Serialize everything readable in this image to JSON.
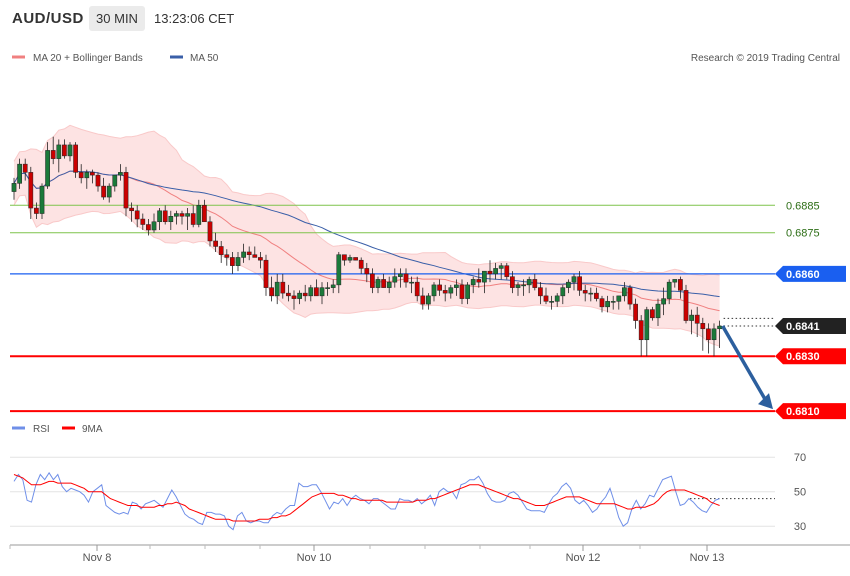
{
  "header": {
    "symbol": "AUD/USD",
    "timeframe": "30 MIN",
    "time": "13:23:06 CET"
  },
  "legend": {
    "ma20_label": "MA 20 + Bollinger Bands",
    "ma50_label": "MA 50",
    "credit": "Research © 2019 Trading Central"
  },
  "rsi_legend": {
    "rsi_label": "RSI",
    "ma_label": "9MA"
  },
  "colors": {
    "candle_up": "#1b7a3a",
    "candle_down": "#cc0000",
    "bollinger_fill": "#fde3e3",
    "ma20": "#f08080",
    "ma50": "#3a5fa8",
    "support": "#ff0000",
    "pivot": "#1a5ff0",
    "target_arrow": "#2c5f9e",
    "green_level": "#7fc34c",
    "rsi": "#6f8fe8",
    "rsi_ma": "#ff0000"
  },
  "chart_data": [
    {
      "type": "candlestick",
      "title": "",
      "xlabel": "",
      "ylabel": "",
      "x_tick_labels": [
        "Nov 8",
        "Nov 10",
        "Nov 12",
        "Nov 13"
      ],
      "ylim": [
        0.68075,
        0.69445
      ],
      "series": [
        {
          "name": "MA 20 + Bollinger Bands",
          "role": "bollinger"
        },
        {
          "name": "MA 50",
          "role": "ma50"
        }
      ],
      "levels": [
        {
          "value": 0.6885,
          "label": "0.6885",
          "kind": "resistance"
        },
        {
          "value": 0.6875,
          "label": "0.6875",
          "kind": "resistance"
        },
        {
          "value": 0.686,
          "label": "0.6860",
          "kind": "pivot"
        },
        {
          "value": 0.6841,
          "label": "0.6841",
          "kind": "last"
        },
        {
          "value": 0.683,
          "label": "0.6830",
          "kind": "support"
        },
        {
          "value": 0.681,
          "label": "0.6810",
          "kind": "support"
        }
      ],
      "candles_ohlc": [
        [
          0.689,
          0.6895,
          0.6887,
          0.6893
        ],
        [
          0.6893,
          0.6902,
          0.6891,
          0.69
        ],
        [
          0.69,
          0.6902,
          0.6894,
          0.6897
        ],
        [
          0.6897,
          0.6899,
          0.688,
          0.6884
        ],
        [
          0.6884,
          0.6886,
          0.688,
          0.6882
        ],
        [
          0.6882,
          0.6893,
          0.688,
          0.6892
        ],
        [
          0.6892,
          0.6908,
          0.6891,
          0.6905
        ],
        [
          0.6905,
          0.691,
          0.69,
          0.6902
        ],
        [
          0.6902,
          0.6909,
          0.6897,
          0.6907
        ],
        [
          0.6907,
          0.6909,
          0.6902,
          0.6903
        ],
        [
          0.6903,
          0.6908,
          0.6901,
          0.6907
        ],
        [
          0.6907,
          0.6908,
          0.6895,
          0.6897
        ],
        [
          0.6897,
          0.69,
          0.6893,
          0.6895
        ],
        [
          0.6895,
          0.6898,
          0.6891,
          0.6897
        ],
        [
          0.6897,
          0.6898,
          0.6893,
          0.6896
        ],
        [
          0.6896,
          0.6897,
          0.689,
          0.6892
        ],
        [
          0.6892,
          0.6895,
          0.6887,
          0.6888
        ],
        [
          0.6888,
          0.6893,
          0.6886,
          0.6892
        ],
        [
          0.6892,
          0.6896,
          0.689,
          0.6896
        ],
        [
          0.6896,
          0.69,
          0.6894,
          0.6897
        ],
        [
          0.6897,
          0.6899,
          0.6881,
          0.6884
        ],
        [
          0.6884,
          0.6886,
          0.6879,
          0.6883
        ],
        [
          0.6883,
          0.6885,
          0.6877,
          0.688
        ],
        [
          0.688,
          0.6882,
          0.6876,
          0.6878
        ],
        [
          0.6878,
          0.688,
          0.6874,
          0.6876
        ],
        [
          0.6876,
          0.6882,
          0.6875,
          0.6879
        ],
        [
          0.6879,
          0.6884,
          0.6876,
          0.6883
        ],
        [
          0.6883,
          0.6885,
          0.6878,
          0.6879
        ],
        [
          0.6879,
          0.6883,
          0.6876,
          0.6881
        ],
        [
          0.6881,
          0.6883,
          0.6878,
          0.6882
        ],
        [
          0.6882,
          0.6883,
          0.6878,
          0.6881
        ],
        [
          0.6881,
          0.6884,
          0.6876,
          0.6882
        ],
        [
          0.6882,
          0.6885,
          0.6877,
          0.6878
        ],
        [
          0.6878,
          0.6887,
          0.6877,
          0.6885
        ],
        [
          0.6885,
          0.6887,
          0.6879,
          0.6879
        ],
        [
          0.6879,
          0.6881,
          0.687,
          0.6872
        ],
        [
          0.6872,
          0.6875,
          0.6868,
          0.687
        ],
        [
          0.687,
          0.6872,
          0.6864,
          0.6867
        ],
        [
          0.6867,
          0.6869,
          0.6863,
          0.6866
        ],
        [
          0.6866,
          0.6868,
          0.686,
          0.6863
        ],
        [
          0.6863,
          0.6868,
          0.6861,
          0.6866
        ],
        [
          0.6866,
          0.6871,
          0.6864,
          0.6868
        ],
        [
          0.6868,
          0.687,
          0.6865,
          0.6867
        ],
        [
          0.6867,
          0.687,
          0.6866,
          0.6866
        ],
        [
          0.6866,
          0.6868,
          0.6862,
          0.6865
        ],
        [
          0.6865,
          0.6867,
          0.6852,
          0.6855
        ],
        [
          0.6855,
          0.6859,
          0.685,
          0.6852
        ],
        [
          0.6852,
          0.686,
          0.6849,
          0.6857
        ],
        [
          0.6857,
          0.686,
          0.6851,
          0.6853
        ],
        [
          0.6853,
          0.6856,
          0.685,
          0.6852
        ],
        [
          0.6852,
          0.6854,
          0.6847,
          0.6851
        ],
        [
          0.6851,
          0.6854,
          0.6849,
          0.6853
        ],
        [
          0.6853,
          0.6856,
          0.685,
          0.6852
        ],
        [
          0.6852,
          0.6856,
          0.685,
          0.6855
        ],
        [
          0.6855,
          0.6858,
          0.6852,
          0.6852
        ],
        [
          0.6852,
          0.6857,
          0.6849,
          0.6855
        ],
        [
          0.6855,
          0.6857,
          0.6852,
          0.6855
        ],
        [
          0.6855,
          0.6858,
          0.6853,
          0.6856
        ],
        [
          0.6856,
          0.6868,
          0.6853,
          0.6867
        ],
        [
          0.6867,
          0.6867,
          0.6863,
          0.6865
        ],
        [
          0.6865,
          0.6867,
          0.6864,
          0.6866
        ],
        [
          0.6866,
          0.6866,
          0.6865,
          0.6865
        ],
        [
          0.6865,
          0.6866,
          0.686,
          0.6862
        ],
        [
          0.6862,
          0.6864,
          0.6857,
          0.686
        ],
        [
          0.686,
          0.6862,
          0.6853,
          0.6855
        ],
        [
          0.6855,
          0.6859,
          0.6853,
          0.6858
        ],
        [
          0.6858,
          0.686,
          0.6855,
          0.6855
        ],
        [
          0.6855,
          0.6859,
          0.6853,
          0.6857
        ],
        [
          0.6857,
          0.6862,
          0.6855,
          0.6859
        ],
        [
          0.6859,
          0.6862,
          0.6855,
          0.686
        ],
        [
          0.686,
          0.6862,
          0.6855,
          0.6857
        ],
        [
          0.6857,
          0.6859,
          0.6853,
          0.6857
        ],
        [
          0.6857,
          0.6859,
          0.685,
          0.6852
        ],
        [
          0.6852,
          0.6855,
          0.6847,
          0.6849
        ],
        [
          0.6849,
          0.6853,
          0.6847,
          0.6852
        ],
        [
          0.6852,
          0.6857,
          0.685,
          0.6856
        ],
        [
          0.6856,
          0.6858,
          0.6852,
          0.6854
        ],
        [
          0.6854,
          0.6856,
          0.685,
          0.6853
        ],
        [
          0.6853,
          0.6856,
          0.6851,
          0.6855
        ],
        [
          0.6855,
          0.6858,
          0.6852,
          0.6856
        ],
        [
          0.6856,
          0.6858,
          0.6849,
          0.6851
        ],
        [
          0.6851,
          0.6857,
          0.6849,
          0.6856
        ],
        [
          0.6856,
          0.6859,
          0.6853,
          0.6858
        ],
        [
          0.6858,
          0.6862,
          0.6855,
          0.6857
        ],
        [
          0.6857,
          0.6861,
          0.6853,
          0.6861
        ],
        [
          0.6861,
          0.6865,
          0.6857,
          0.686
        ],
        [
          0.686,
          0.6864,
          0.6858,
          0.6862
        ],
        [
          0.6862,
          0.6864,
          0.6858,
          0.6863
        ],
        [
          0.6863,
          0.6864,
          0.6858,
          0.6859
        ],
        [
          0.6859,
          0.6861,
          0.6853,
          0.6855
        ],
        [
          0.6855,
          0.6857,
          0.6852,
          0.6856
        ],
        [
          0.6856,
          0.6858,
          0.6852,
          0.6856
        ],
        [
          0.6856,
          0.6859,
          0.6853,
          0.6858
        ],
        [
          0.6858,
          0.686,
          0.6854,
          0.6855
        ],
        [
          0.6855,
          0.6857,
          0.6849,
          0.6852
        ],
        [
          0.6852,
          0.6855,
          0.6849,
          0.685
        ],
        [
          0.685,
          0.6852,
          0.6847,
          0.685
        ],
        [
          0.685,
          0.6853,
          0.6848,
          0.6852
        ],
        [
          0.6852,
          0.6856,
          0.6849,
          0.6855
        ],
        [
          0.6855,
          0.6858,
          0.6853,
          0.6857
        ],
        [
          0.6857,
          0.686,
          0.6854,
          0.6859
        ],
        [
          0.6859,
          0.6861,
          0.6852,
          0.6854
        ],
        [
          0.6854,
          0.6856,
          0.685,
          0.6853
        ],
        [
          0.6853,
          0.6855,
          0.685,
          0.6853
        ],
        [
          0.6853,
          0.6855,
          0.685,
          0.6851
        ],
        [
          0.6851,
          0.6852,
          0.6846,
          0.6848
        ],
        [
          0.6848,
          0.6852,
          0.6846,
          0.685
        ],
        [
          0.685,
          0.6852,
          0.6847,
          0.685
        ],
        [
          0.685,
          0.6852,
          0.6847,
          0.6852
        ],
        [
          0.6852,
          0.6857,
          0.685,
          0.6855
        ],
        [
          0.6855,
          0.6856,
          0.6847,
          0.6849
        ],
        [
          0.6849,
          0.6851,
          0.684,
          0.6843
        ],
        [
          0.6843,
          0.6845,
          0.683,
          0.6836
        ],
        [
          0.6836,
          0.6848,
          0.683,
          0.6847
        ],
        [
          0.6847,
          0.6848,
          0.6843,
          0.6844
        ],
        [
          0.6844,
          0.6851,
          0.6841,
          0.6849
        ],
        [
          0.6849,
          0.6855,
          0.6845,
          0.6851
        ],
        [
          0.6851,
          0.6858,
          0.6849,
          0.6857
        ],
        [
          0.6857,
          0.6858,
          0.6855,
          0.6858
        ],
        [
          0.6858,
          0.6859,
          0.6851,
          0.6854
        ],
        [
          0.6854,
          0.6856,
          0.6842,
          0.6843
        ],
        [
          0.6843,
          0.6847,
          0.6838,
          0.6845
        ],
        [
          0.6845,
          0.6848,
          0.6837,
          0.6842
        ],
        [
          0.6842,
          0.6844,
          0.6832,
          0.684
        ],
        [
          0.684,
          0.6842,
          0.6831,
          0.6836
        ],
        [
          0.6836,
          0.6842,
          0.683,
          0.684
        ],
        [
          0.684,
          0.6843,
          0.6833,
          0.6841
        ]
      ]
    },
    {
      "type": "line",
      "title": "",
      "xlabel": "",
      "ylabel": "",
      "ylim": [
        22,
        80
      ],
      "y_ticks": [
        70,
        50,
        30
      ],
      "reference_level": 46,
      "series": [
        {
          "name": "RSI",
          "values": [
            56,
            60,
            57,
            45,
            44,
            54,
            60,
            57,
            61,
            57,
            60,
            53,
            50,
            52,
            51,
            50,
            48,
            44,
            50,
            52,
            54,
            42,
            40,
            38,
            37,
            38,
            37,
            44,
            43,
            40,
            43,
            44,
            45,
            43,
            41,
            46,
            51,
            47,
            42,
            37,
            35,
            34,
            32,
            31,
            38,
            38,
            37,
            37,
            36,
            30,
            28,
            36,
            38,
            33,
            32,
            33,
            33,
            32,
            32,
            36,
            38,
            37,
            40,
            42,
            42,
            55,
            53,
            53,
            54,
            54,
            50,
            45,
            40,
            44,
            43,
            46,
            42,
            46,
            48,
            46,
            45,
            43,
            46,
            46,
            44,
            42,
            40,
            40,
            46,
            45,
            45,
            44,
            46,
            43,
            45,
            48,
            42,
            50,
            52,
            50,
            50,
            46,
            54,
            55,
            57,
            57,
            59,
            55,
            49,
            45,
            44,
            44,
            45,
            49,
            50,
            48,
            44,
            40,
            39,
            39,
            39,
            38,
            43,
            47,
            49,
            53,
            55,
            52,
            45,
            43,
            45,
            42,
            38,
            40,
            44,
            47,
            52,
            44,
            35,
            30,
            32,
            40,
            45,
            40,
            43,
            48,
            47,
            52,
            57,
            58,
            59,
            50,
            42,
            43,
            46,
            44,
            41,
            39,
            38,
            42,
            45,
            46
          ]
        },
        {
          "name": "9MA",
          "values": [
            60,
            59,
            58,
            56,
            54,
            54,
            54,
            55,
            56,
            56,
            55,
            55,
            55,
            55,
            54,
            53,
            52,
            50,
            50,
            50,
            50,
            48,
            46,
            45,
            44,
            43,
            42,
            42,
            42,
            41,
            41,
            41,
            41,
            42,
            42,
            43,
            43,
            44,
            43,
            42,
            40,
            39,
            38,
            37,
            36,
            35,
            34,
            34,
            34,
            34,
            33,
            33,
            33,
            33,
            33,
            33,
            34,
            34,
            34,
            35,
            35,
            36,
            36,
            37,
            39,
            41,
            43,
            45,
            47,
            48,
            49,
            49,
            49,
            49,
            48,
            48,
            47,
            46,
            46,
            45,
            45,
            45,
            45,
            45,
            45,
            44,
            44,
            44,
            44,
            44,
            44,
            44,
            45,
            45,
            45,
            46,
            46,
            47,
            48,
            49,
            50,
            51,
            52,
            53,
            54,
            54,
            54,
            53,
            52,
            51,
            50,
            49,
            48,
            47,
            46,
            46,
            45,
            44,
            43,
            42,
            42,
            42,
            43,
            44,
            45,
            46,
            47,
            47,
            47,
            47,
            46,
            45,
            44,
            43,
            43,
            43,
            43,
            43,
            42,
            41,
            40,
            40,
            41,
            41,
            41,
            42,
            43,
            45,
            48,
            50,
            51,
            51,
            51,
            51,
            50,
            49,
            48,
            47,
            46,
            44,
            43,
            42
          ]
        }
      ]
    }
  ]
}
